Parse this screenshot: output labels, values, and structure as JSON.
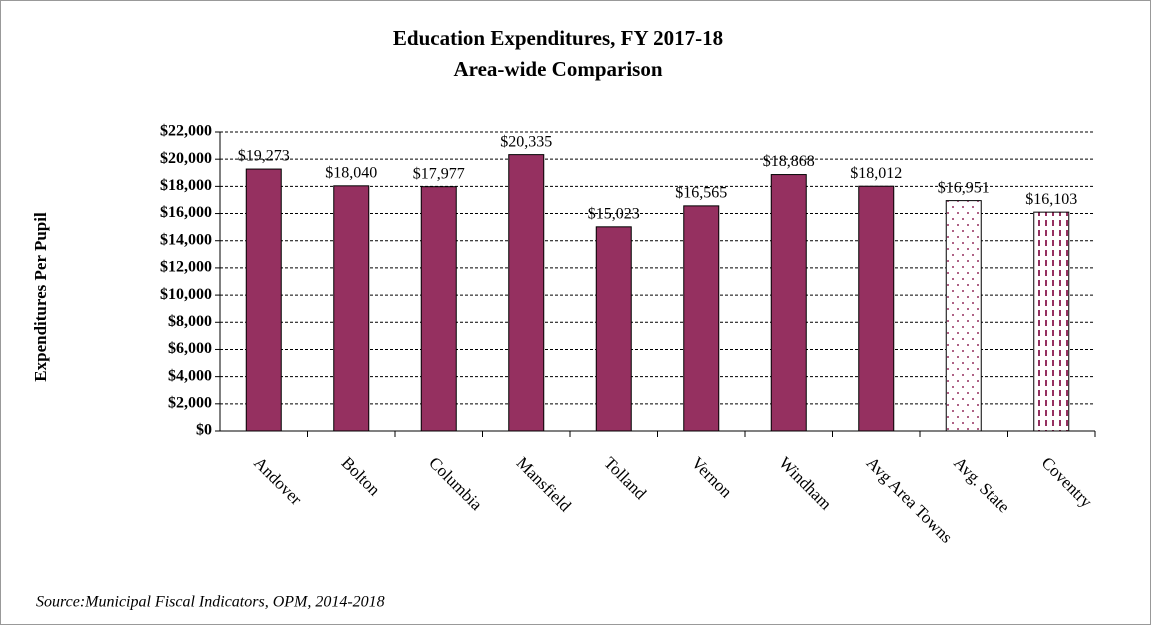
{
  "chart_data": {
    "type": "bar",
    "title": "Education Expenditures, FY 2017-18",
    "subtitle": "Area-wide Comparison",
    "y_label": "Expenditures  Per Pupil",
    "source": "Source:Municipal Fiscal Indicators, OPM, 2014-2018",
    "categories": [
      "Andover",
      "Bolton",
      "Columbia",
      "Mansfield",
      "Tolland",
      "Vernon",
      "Windham",
      "Avg Area Towns",
      "Avg. State",
      "Coventry"
    ],
    "values": [
      19273,
      18040,
      17977,
      20335,
      15023,
      16565,
      18868,
      18012,
      16951,
      16103
    ],
    "value_labels": [
      "$19,273",
      "$18,040",
      "$17,977",
      "$20,335",
      "$15,023",
      "$16,565",
      "$18,868",
      "$18,012",
      "$16,951",
      "$16,103"
    ],
    "color": "#953060",
    "patterns": [
      "solid",
      "solid",
      "solid",
      "solid",
      "solid",
      "solid",
      "solid",
      "solid",
      "dots",
      "stripes"
    ],
    "ylim": [
      0,
      22000
    ],
    "yticks": [
      {
        "value": 0,
        "label": "$0"
      },
      {
        "value": 2000,
        "label": "$2,000"
      },
      {
        "value": 4000,
        "label": "$4,000"
      },
      {
        "value": 6000,
        "label": "$6,000"
      },
      {
        "value": 8000,
        "label": "$8,000"
      },
      {
        "value": 10000,
        "label": "$10,000"
      },
      {
        "value": 12000,
        "label": "$12,000"
      },
      {
        "value": 14000,
        "label": "$14,000"
      },
      {
        "value": 16000,
        "label": "$16,000"
      },
      {
        "value": 18000,
        "label": "$18,000"
      },
      {
        "value": 20000,
        "label": "$20,000"
      },
      {
        "value": 22000,
        "label": "$22,000"
      }
    ],
    "grid": true
  }
}
